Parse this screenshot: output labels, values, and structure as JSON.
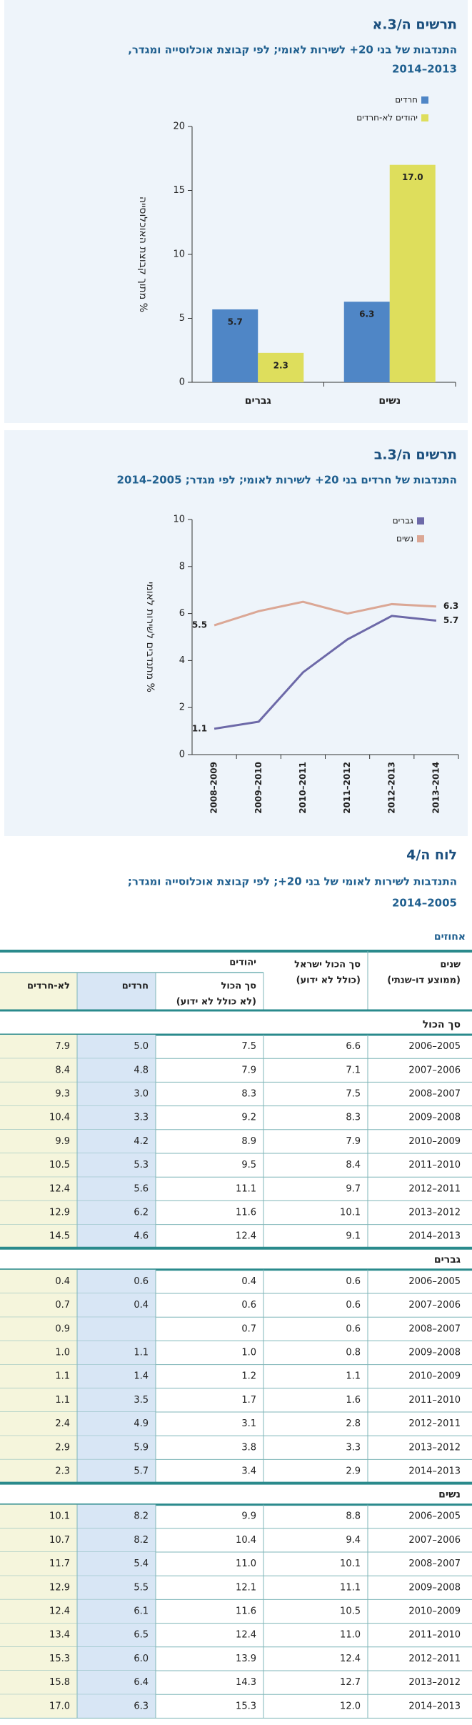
{
  "chart_data": [
    {
      "type": "bar",
      "title": "תרשים ה/3.א",
      "subtitle": [
        "התנדבות של בני 20+ לשירות לאומי; לפי קבוצת אוכלוסייה ומגדר,",
        "2013–2014"
      ],
      "y_label": "% מתוך קבוצת האוכלוסייה",
      "categories": [
        "גברים",
        "נשים"
      ],
      "series": [
        {
          "name": "חרדים",
          "color": "#4f86c6",
          "values": [
            5.7,
            6.3
          ],
          "value_labels": [
            "5.7",
            "6.3"
          ]
        },
        {
          "name": "יהודים לא-חרדים",
          "color": "#dede5c",
          "values": [
            2.3,
            17
          ],
          "value_labels": [
            "2.3",
            "17.0"
          ]
        }
      ],
      "ylim": [
        0,
        20
      ],
      "yticks": [
        0,
        5,
        10,
        15,
        20
      ]
    },
    {
      "type": "line",
      "title": "תרשים ה/3.ב",
      "subtitle": [
        "התנדבות של חרדים בני 20+ לשירות לאומי; לפי מגדר; 2005–2014"
      ],
      "y_label": "% מתנדבים לשירות לאומי",
      "categories": [
        "2008–2009",
        "2009–2010",
        "2010–2011",
        "2011–2012",
        "2012–2013",
        "2013–2014"
      ],
      "series": [
        {
          "name": "גברים",
          "color": "#6d69a8",
          "values": [
            1.1,
            1.4,
            3.5,
            4.9,
            5.9,
            5.7
          ]
        },
        {
          "name": "נשים",
          "color": "#dba795",
          "values": [
            5.5,
            6.1,
            6.5,
            6.0,
            6.4,
            6.3
          ]
        }
      ],
      "ylim": [
        0,
        10
      ],
      "yticks": [
        0,
        2,
        4,
        6,
        8,
        10
      ]
    }
  ],
  "table": {
    "number": "לוח ה/4",
    "title": [
      "התנדבות לשירות לאומי של בני 20+; לפי קבוצת אוכלוסייה ומגדר;",
      "2005–2014"
    ],
    "unit": "אחוזים",
    "group_header": "יהודים",
    "headers": [
      [
        "שנים",
        "(ממוצע דו-שנתי)"
      ],
      [
        "סך הכול ישראל",
        "(כולל לא ידוע)"
      ],
      [
        "סך הכול",
        "(לא כולל לא ידוע)"
      ],
      [
        "חרדים"
      ],
      [
        "לא-חרדים"
      ]
    ],
    "sections": [
      {
        "name": "סך הכול",
        "rows": [
          [
            "2005–2006",
            "6.6",
            "7.5",
            "5.0",
            "7.9"
          ],
          [
            "2006–2007",
            "7.1",
            "7.9",
            "4.8",
            "8.4"
          ],
          [
            "2007–2008",
            "7.5",
            "8.3",
            "3.0",
            "9.3"
          ],
          [
            "2008–2009",
            "8.3",
            "9.2",
            "3.3",
            "10.4"
          ],
          [
            "2009–2010",
            "7.9",
            "8.9",
            "4.2",
            "9.9"
          ],
          [
            "2010–2011",
            "8.4",
            "9.5",
            "5.3",
            "10.5"
          ],
          [
            "2011–2012",
            "9.7",
            "11.1",
            "5.6",
            "12.4"
          ],
          [
            "2012–2013",
            "10.1",
            "11.6",
            "6.2",
            "12.9"
          ],
          [
            "2013–2014",
            "9.1",
            "12.4",
            "4.6",
            "14.5"
          ]
        ]
      },
      {
        "name": "גברים",
        "rows": [
          [
            "2005–2006",
            "0.6",
            "0.4",
            "0.6",
            "0.4"
          ],
          [
            "2006–2007",
            "0.6",
            "0.6",
            "0.4",
            "0.7"
          ],
          [
            "2007–2008",
            "0.6",
            "0.7",
            null,
            "0.9"
          ],
          [
            "2008–2009",
            "0.8",
            "1.0",
            "1.1",
            "1.0"
          ],
          [
            "2009–2010",
            "1.1",
            "1.2",
            "1.4",
            "1.1"
          ],
          [
            "2010–2011",
            "1.6",
            "1.7",
            "3.5",
            "1.1"
          ],
          [
            "2011–2012",
            "2.8",
            "3.1",
            "4.9",
            "2.4"
          ],
          [
            "2012–2013",
            "3.3",
            "3.8",
            "5.9",
            "2.9"
          ],
          [
            "2013–2014",
            "2.9",
            "3.4",
            "5.7",
            "2.3"
          ]
        ]
      },
      {
        "name": "נשים",
        "rows": [
          [
            "2005–2006",
            "8.8",
            "9.9",
            "8.2",
            "10.1"
          ],
          [
            "2006–2007",
            "9.4",
            "10.4",
            "8.2",
            "10.7"
          ],
          [
            "2007–2008",
            "10.1",
            "11.0",
            "5.4",
            "11.7"
          ],
          [
            "2008–2009",
            "11.1",
            "12.1",
            "5.5",
            "12.9"
          ],
          [
            "2009–2010",
            "10.5",
            "11.6",
            "6.1",
            "12.4"
          ],
          [
            "2010–2011",
            "11.0",
            "12.4",
            "6.5",
            "13.4"
          ],
          [
            "2011–2012",
            "12.4",
            "13.9",
            "6.0",
            "15.3"
          ],
          [
            "2012–2013",
            "12.7",
            "14.3",
            "6.4",
            "15.8"
          ],
          [
            "2013–2014",
            "12.0",
            "15.3",
            "6.3",
            "17.0"
          ]
        ]
      }
    ]
  }
}
